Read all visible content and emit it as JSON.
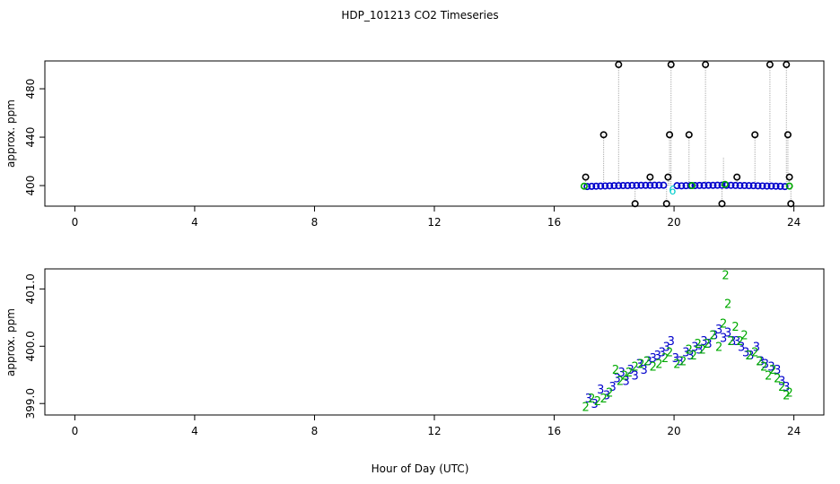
{
  "title": "HDP_101213  CO2 Timeseries",
  "xlabel": "Hour of Day (UTC)",
  "colors": {
    "black": "#000000",
    "blue": "#0000cc",
    "green": "#00aa00",
    "cyan": "#00cccc",
    "connector": "#aaaaaa"
  },
  "chart_data": [
    {
      "type": "scatter",
      "ylabel": "approx. ppm",
      "xlim": [
        -1,
        25
      ],
      "ylim": [
        383,
        503
      ],
      "x_ticks": [
        "0",
        "4",
        "8",
        "12",
        "16",
        "20",
        "24"
      ],
      "x_tick_values": [
        0,
        4,
        8,
        12,
        16,
        20,
        24
      ],
      "y_ticks": [
        "400",
        "440",
        "480"
      ],
      "y_tick_values": [
        400,
        440,
        480
      ],
      "connectors": true,
      "series": [
        {
          "marker": "o",
          "color": "black",
          "points": [
            [
              17.05,
              407
            ],
            [
              17.65,
              442
            ],
            [
              18.15,
              500
            ],
            [
              18.7,
              385
            ],
            [
              19.2,
              407
            ],
            [
              19.75,
              385
            ],
            [
              19.8,
              407
            ],
            [
              19.85,
              442
            ],
            [
              19.9,
              500
            ],
            [
              20.5,
              442
            ],
            [
              21.05,
              500
            ],
            [
              21.6,
              385
            ],
            [
              22.1,
              407
            ],
            [
              22.7,
              442
            ],
            [
              23.2,
              500
            ],
            [
              23.75,
              500
            ],
            [
              23.8,
              442
            ],
            [
              23.85,
              407
            ],
            [
              23.9,
              385
            ]
          ]
        },
        {
          "marker": "o",
          "color": "blue",
          "points": [
            [
              17.1,
              399.2
            ],
            [
              17.25,
              399.4
            ],
            [
              17.4,
              399.5
            ],
            [
              17.55,
              399.6
            ],
            [
              17.7,
              399.7
            ],
            [
              17.85,
              399.8
            ],
            [
              18.0,
              399.9
            ],
            [
              18.15,
              399.9
            ],
            [
              18.3,
              400.0
            ],
            [
              18.45,
              400.0
            ],
            [
              18.6,
              400.1
            ],
            [
              18.75,
              400.1
            ],
            [
              18.9,
              400.2
            ],
            [
              19.05,
              400.2
            ],
            [
              19.2,
              400.2
            ],
            [
              19.35,
              400.3
            ],
            [
              19.5,
              400.3
            ],
            [
              19.65,
              400.3
            ],
            [
              20.1,
              399.9
            ],
            [
              20.25,
              399.8
            ],
            [
              20.4,
              399.9
            ],
            [
              20.55,
              400.0
            ],
            [
              20.7,
              400.0
            ],
            [
              20.85,
              400.1
            ],
            [
              21.0,
              400.1
            ],
            [
              21.15,
              400.2
            ],
            [
              21.3,
              400.2
            ],
            [
              21.45,
              400.3
            ],
            [
              21.6,
              400.3
            ],
            [
              21.75,
              400.2
            ],
            [
              21.9,
              400.2
            ],
            [
              22.05,
              400.1
            ],
            [
              22.2,
              400.0
            ],
            [
              22.35,
              400.0
            ],
            [
              22.5,
              399.9
            ],
            [
              22.65,
              399.9
            ],
            [
              22.8,
              399.8
            ],
            [
              22.95,
              399.7
            ],
            [
              23.1,
              399.6
            ],
            [
              23.25,
              399.6
            ],
            [
              23.4,
              399.5
            ],
            [
              23.55,
              399.4
            ],
            [
              23.7,
              399.2
            ]
          ]
        },
        {
          "marker": "o",
          "color": "green",
          "points": [
            [
              17.0,
              399.5
            ],
            [
              20.6,
              400.0
            ],
            [
              21.7,
              401.0
            ],
            [
              23.85,
              399.6
            ]
          ]
        },
        {
          "marker": "6",
          "color": "cyan",
          "points": [
            [
              19.95,
              396.5
            ]
          ]
        }
      ]
    },
    {
      "type": "scatter",
      "ylabel": "approx. ppm",
      "xlim": [
        -1,
        25
      ],
      "ylim": [
        398.8,
        401.35
      ],
      "x_ticks": [
        "0",
        "4",
        "8",
        "12",
        "16",
        "20",
        "24"
      ],
      "x_tick_values": [
        0,
        4,
        8,
        12,
        16,
        20,
        24
      ],
      "y_ticks": [
        "399.0",
        "400.0",
        "401.0"
      ],
      "y_tick_values": [
        399.0,
        400.0,
        401.0
      ],
      "connectors": false,
      "series": [
        {
          "marker": "3",
          "color": "blue",
          "points": [
            [
              17.15,
              399.1
            ],
            [
              17.35,
              399.0
            ],
            [
              17.55,
              399.25
            ],
            [
              17.75,
              399.15
            ],
            [
              17.95,
              399.3
            ],
            [
              18.1,
              399.45
            ],
            [
              18.25,
              399.55
            ],
            [
              18.4,
              399.4
            ],
            [
              18.55,
              399.6
            ],
            [
              18.7,
              399.5
            ],
            [
              18.85,
              399.7
            ],
            [
              19.0,
              399.6
            ],
            [
              19.15,
              399.75
            ],
            [
              19.3,
              399.8
            ],
            [
              19.45,
              399.85
            ],
            [
              19.6,
              399.9
            ],
            [
              19.75,
              400.0
            ],
            [
              19.9,
              400.1
            ],
            [
              20.05,
              399.8
            ],
            [
              20.2,
              399.75
            ],
            [
              20.4,
              399.9
            ],
            [
              20.55,
              399.85
            ],
            [
              20.7,
              400.0
            ],
            [
              20.85,
              399.95
            ],
            [
              21.0,
              400.1
            ],
            [
              21.15,
              400.05
            ],
            [
              21.35,
              400.2
            ],
            [
              21.5,
              400.3
            ],
            [
              21.65,
              400.15
            ],
            [
              21.8,
              400.25
            ],
            [
              21.95,
              400.1
            ],
            [
              22.1,
              400.1
            ],
            [
              22.25,
              400.0
            ],
            [
              22.4,
              399.9
            ],
            [
              22.55,
              399.85
            ],
            [
              22.75,
              400.0
            ],
            [
              22.9,
              399.75
            ],
            [
              23.05,
              399.7
            ],
            [
              23.25,
              399.65
            ],
            [
              23.45,
              399.6
            ],
            [
              23.6,
              399.4
            ],
            [
              23.75,
              399.3
            ]
          ]
        },
        {
          "marker": "2",
          "color": "green",
          "points": [
            [
              17.05,
              398.95
            ],
            [
              17.25,
              399.1
            ],
            [
              17.45,
              399.05
            ],
            [
              17.65,
              399.1
            ],
            [
              17.85,
              399.2
            ],
            [
              18.05,
              399.6
            ],
            [
              18.2,
              399.4
            ],
            [
              18.35,
              399.5
            ],
            [
              18.5,
              399.55
            ],
            [
              18.7,
              399.65
            ],
            [
              18.9,
              399.7
            ],
            [
              19.1,
              399.75
            ],
            [
              19.3,
              399.65
            ],
            [
              19.5,
              399.7
            ],
            [
              19.7,
              399.8
            ],
            [
              19.85,
              399.9
            ],
            [
              20.1,
              399.7
            ],
            [
              20.3,
              399.75
            ],
            [
              20.5,
              399.95
            ],
            [
              20.65,
              399.85
            ],
            [
              20.8,
              400.05
            ],
            [
              20.95,
              399.95
            ],
            [
              21.1,
              400.05
            ],
            [
              21.3,
              400.2
            ],
            [
              21.5,
              400.0
            ],
            [
              21.65,
              400.4
            ],
            [
              21.72,
              401.25
            ],
            [
              21.8,
              400.75
            ],
            [
              21.9,
              400.1
            ],
            [
              22.05,
              400.35
            ],
            [
              22.2,
              400.1
            ],
            [
              22.35,
              400.2
            ],
            [
              22.5,
              399.85
            ],
            [
              22.7,
              399.9
            ],
            [
              22.85,
              399.75
            ],
            [
              23.0,
              399.65
            ],
            [
              23.15,
              399.5
            ],
            [
              23.3,
              399.6
            ],
            [
              23.45,
              399.45
            ],
            [
              23.6,
              399.3
            ],
            [
              23.75,
              399.15
            ],
            [
              23.85,
              399.2
            ]
          ]
        }
      ]
    }
  ]
}
